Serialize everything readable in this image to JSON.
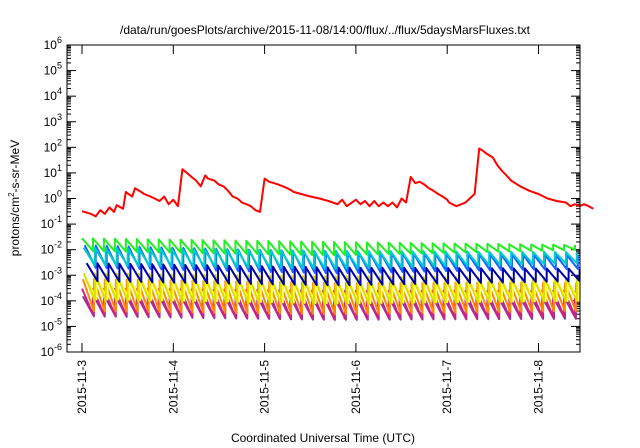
{
  "chart_data": {
    "type": "line",
    "title": "/data/run/goesPlots/archive/2015-11-08/14:00/flux/../flux/5daysMarsFluxes.txt",
    "xlabel": "Coordinated Universal Time (UTC)",
    "ylabel": "protons/cm2-s-sr-MeV",
    "ylabel_parts": {
      "base": "protons/cm",
      "sup": "2",
      "rest": "-s-sr-MeV"
    },
    "x_unit": "days since 2015-11-03 00:00 UTC",
    "xlim": [
      0,
      5.6
    ],
    "x_ticks": [
      {
        "x": 0,
        "label": "2015-11-3"
      },
      {
        "x": 1,
        "label": "2015-11-4"
      },
      {
        "x": 2,
        "label": "2015-11-5"
      },
      {
        "x": 3,
        "label": "2015-11-6"
      },
      {
        "x": 4,
        "label": "2015-11-7"
      },
      {
        "x": 5,
        "label": "2015-11-8"
      }
    ],
    "y_scale": "log",
    "ylim": [
      1e-06,
      1000000.0
    ],
    "y_ticks": [
      {
        "exp": "6",
        "value": 1000000.0
      },
      {
        "exp": "5",
        "value": 100000.0
      },
      {
        "exp": "4",
        "value": 10000.0
      },
      {
        "exp": "3",
        "value": 1000.0
      },
      {
        "exp": "2",
        "value": 100.0
      },
      {
        "exp": "1",
        "value": 10.0
      },
      {
        "exp": "0",
        "value": 1.0
      },
      {
        "exp": "-1",
        "value": 0.1
      },
      {
        "exp": "-2",
        "value": 0.01
      },
      {
        "exp": "-3",
        "value": 0.001
      },
      {
        "exp": "-4",
        "value": 0.0001
      },
      {
        "exp": "-5",
        "value": 1e-05
      },
      {
        "exp": "-6",
        "value": 1e-06
      }
    ],
    "grid": false,
    "legend": "none",
    "series": [
      {
        "color": "#ff0000",
        "x": [
          0.0,
          0.1,
          0.15,
          0.2,
          0.25,
          0.3,
          0.35,
          0.38,
          0.45,
          0.48,
          0.55,
          0.58,
          0.65,
          0.68,
          0.75,
          0.85,
          0.9,
          0.95,
          1.0,
          1.05,
          1.1,
          1.15,
          1.18,
          1.25,
          1.3,
          1.35,
          1.38,
          1.45,
          1.5,
          1.55,
          1.6,
          1.65,
          1.7,
          1.72,
          1.75,
          1.8,
          1.85,
          1.9,
          1.95,
          2.0,
          2.05,
          2.1,
          2.15,
          2.2,
          2.25,
          2.3,
          2.32,
          2.4,
          2.5,
          2.6,
          2.7,
          2.8,
          2.85,
          2.9,
          3.0,
          3.05,
          3.1,
          3.15,
          3.2,
          3.25,
          3.3,
          3.35,
          3.4,
          3.45,
          3.5,
          3.55,
          3.6,
          3.65,
          3.7,
          3.75,
          3.8,
          3.85,
          3.9,
          3.95,
          4.0,
          4.02,
          4.1,
          4.2,
          4.3,
          4.35,
          4.4,
          4.42,
          4.5,
          4.55,
          4.6,
          4.65,
          4.7,
          4.8,
          4.9,
          5.0,
          5.1,
          5.2,
          5.3,
          5.35,
          5.4,
          5.45,
          5.5,
          5.55,
          5.6
        ],
        "y": [
          0.32,
          0.25,
          0.2,
          0.35,
          0.25,
          0.45,
          0.3,
          0.55,
          0.4,
          1.8,
          1.2,
          2.5,
          1.8,
          1.5,
          1.2,
          0.8,
          1.2,
          0.6,
          0.9,
          0.5,
          14,
          10,
          8,
          5,
          3,
          8,
          6,
          5,
          3.5,
          3,
          2,
          1.2,
          1.0,
          0.9,
          0.7,
          0.6,
          0.5,
          0.35,
          0.3,
          6,
          4.5,
          4,
          3.5,
          3,
          2.5,
          2,
          1.8,
          1.5,
          1.2,
          1.0,
          0.8,
          0.6,
          0.9,
          0.5,
          0.9,
          0.6,
          0.8,
          0.5,
          0.8,
          0.5,
          0.7,
          0.5,
          0.7,
          0.45,
          1.0,
          0.7,
          7,
          4,
          4.5,
          3.5,
          2.5,
          2.0,
          1.5,
          1.2,
          0.9,
          0.7,
          0.5,
          0.7,
          1.5,
          90,
          70,
          60,
          40,
          20,
          12,
          8,
          5,
          3,
          2,
          1.5,
          1.0,
          0.8,
          0.7,
          0.5,
          0.6,
          0.5,
          0.6,
          0.5,
          0.4
        ]
      },
      {
        "color": "#22ee22",
        "sawtooth": {
          "start": 0.0,
          "period": 0.12,
          "peaks": 46,
          "top": [
            0.028,
            0.02,
            0.015
          ],
          "low": [
            0.009,
            0.006,
            0.01
          ]
        }
      },
      {
        "color": "#00cccc",
        "sawtooth": {
          "start": 0.02,
          "period": 0.12,
          "peaks": 46,
          "top": [
            0.012,
            0.009,
            0.008
          ],
          "low": [
            0.0025,
            0.0018,
            0.003
          ]
        }
      },
      {
        "color": "#1166ff",
        "sawtooth": {
          "start": 0.03,
          "period": 0.12,
          "peaks": 46,
          "top": [
            0.015,
            0.008,
            0.006
          ],
          "low": [
            0.002,
            0.0012,
            0.0018
          ]
        }
      },
      {
        "color": "#0000aa",
        "sawtooth": {
          "start": 0.05,
          "period": 0.12,
          "peaks": 46,
          "top": [
            0.003,
            0.002,
            0.0018
          ],
          "low": [
            0.0006,
            0.0004,
            0.0006
          ]
        }
      },
      {
        "color": "#dddd00",
        "sawtooth": {
          "start": 0.02,
          "period": 0.12,
          "peaks": 46,
          "top": [
            0.0012,
            0.0009,
            0.0008
          ],
          "low": [
            0.0001,
            7e-05,
            0.0001
          ]
        }
      },
      {
        "color": "#ffff44",
        "sawtooth": {
          "start": 0.04,
          "period": 0.12,
          "peaks": 46,
          "top": [
            0.0008,
            0.0006,
            0.0006
          ],
          "low": [
            0.00012,
            8e-05,
            0.0001
          ]
        }
      },
      {
        "color": "#ff8800",
        "sawtooth": {
          "start": 0.01,
          "period": 0.12,
          "peaks": 46,
          "top": [
            0.0007,
            0.0005,
            0.0005
          ],
          "low": [
            4e-05,
            3e-05,
            4e-05
          ]
        }
      },
      {
        "color": "#cc2288",
        "sawtooth": {
          "start": 0.0,
          "period": 0.12,
          "peaks": 46,
          "top": [
            0.0003,
            0.00025,
            0.00025
          ],
          "low": [
            3e-05,
            2e-05,
            2.5e-05
          ]
        }
      },
      {
        "color": "#993399",
        "sawtooth": {
          "start": 0.01,
          "period": 0.12,
          "peaks": 46,
          "top": [
            0.00015,
            0.00012,
            0.00012
          ],
          "low": [
            2.5e-05,
            1.8e-05,
            2e-05
          ]
        }
      }
    ]
  }
}
